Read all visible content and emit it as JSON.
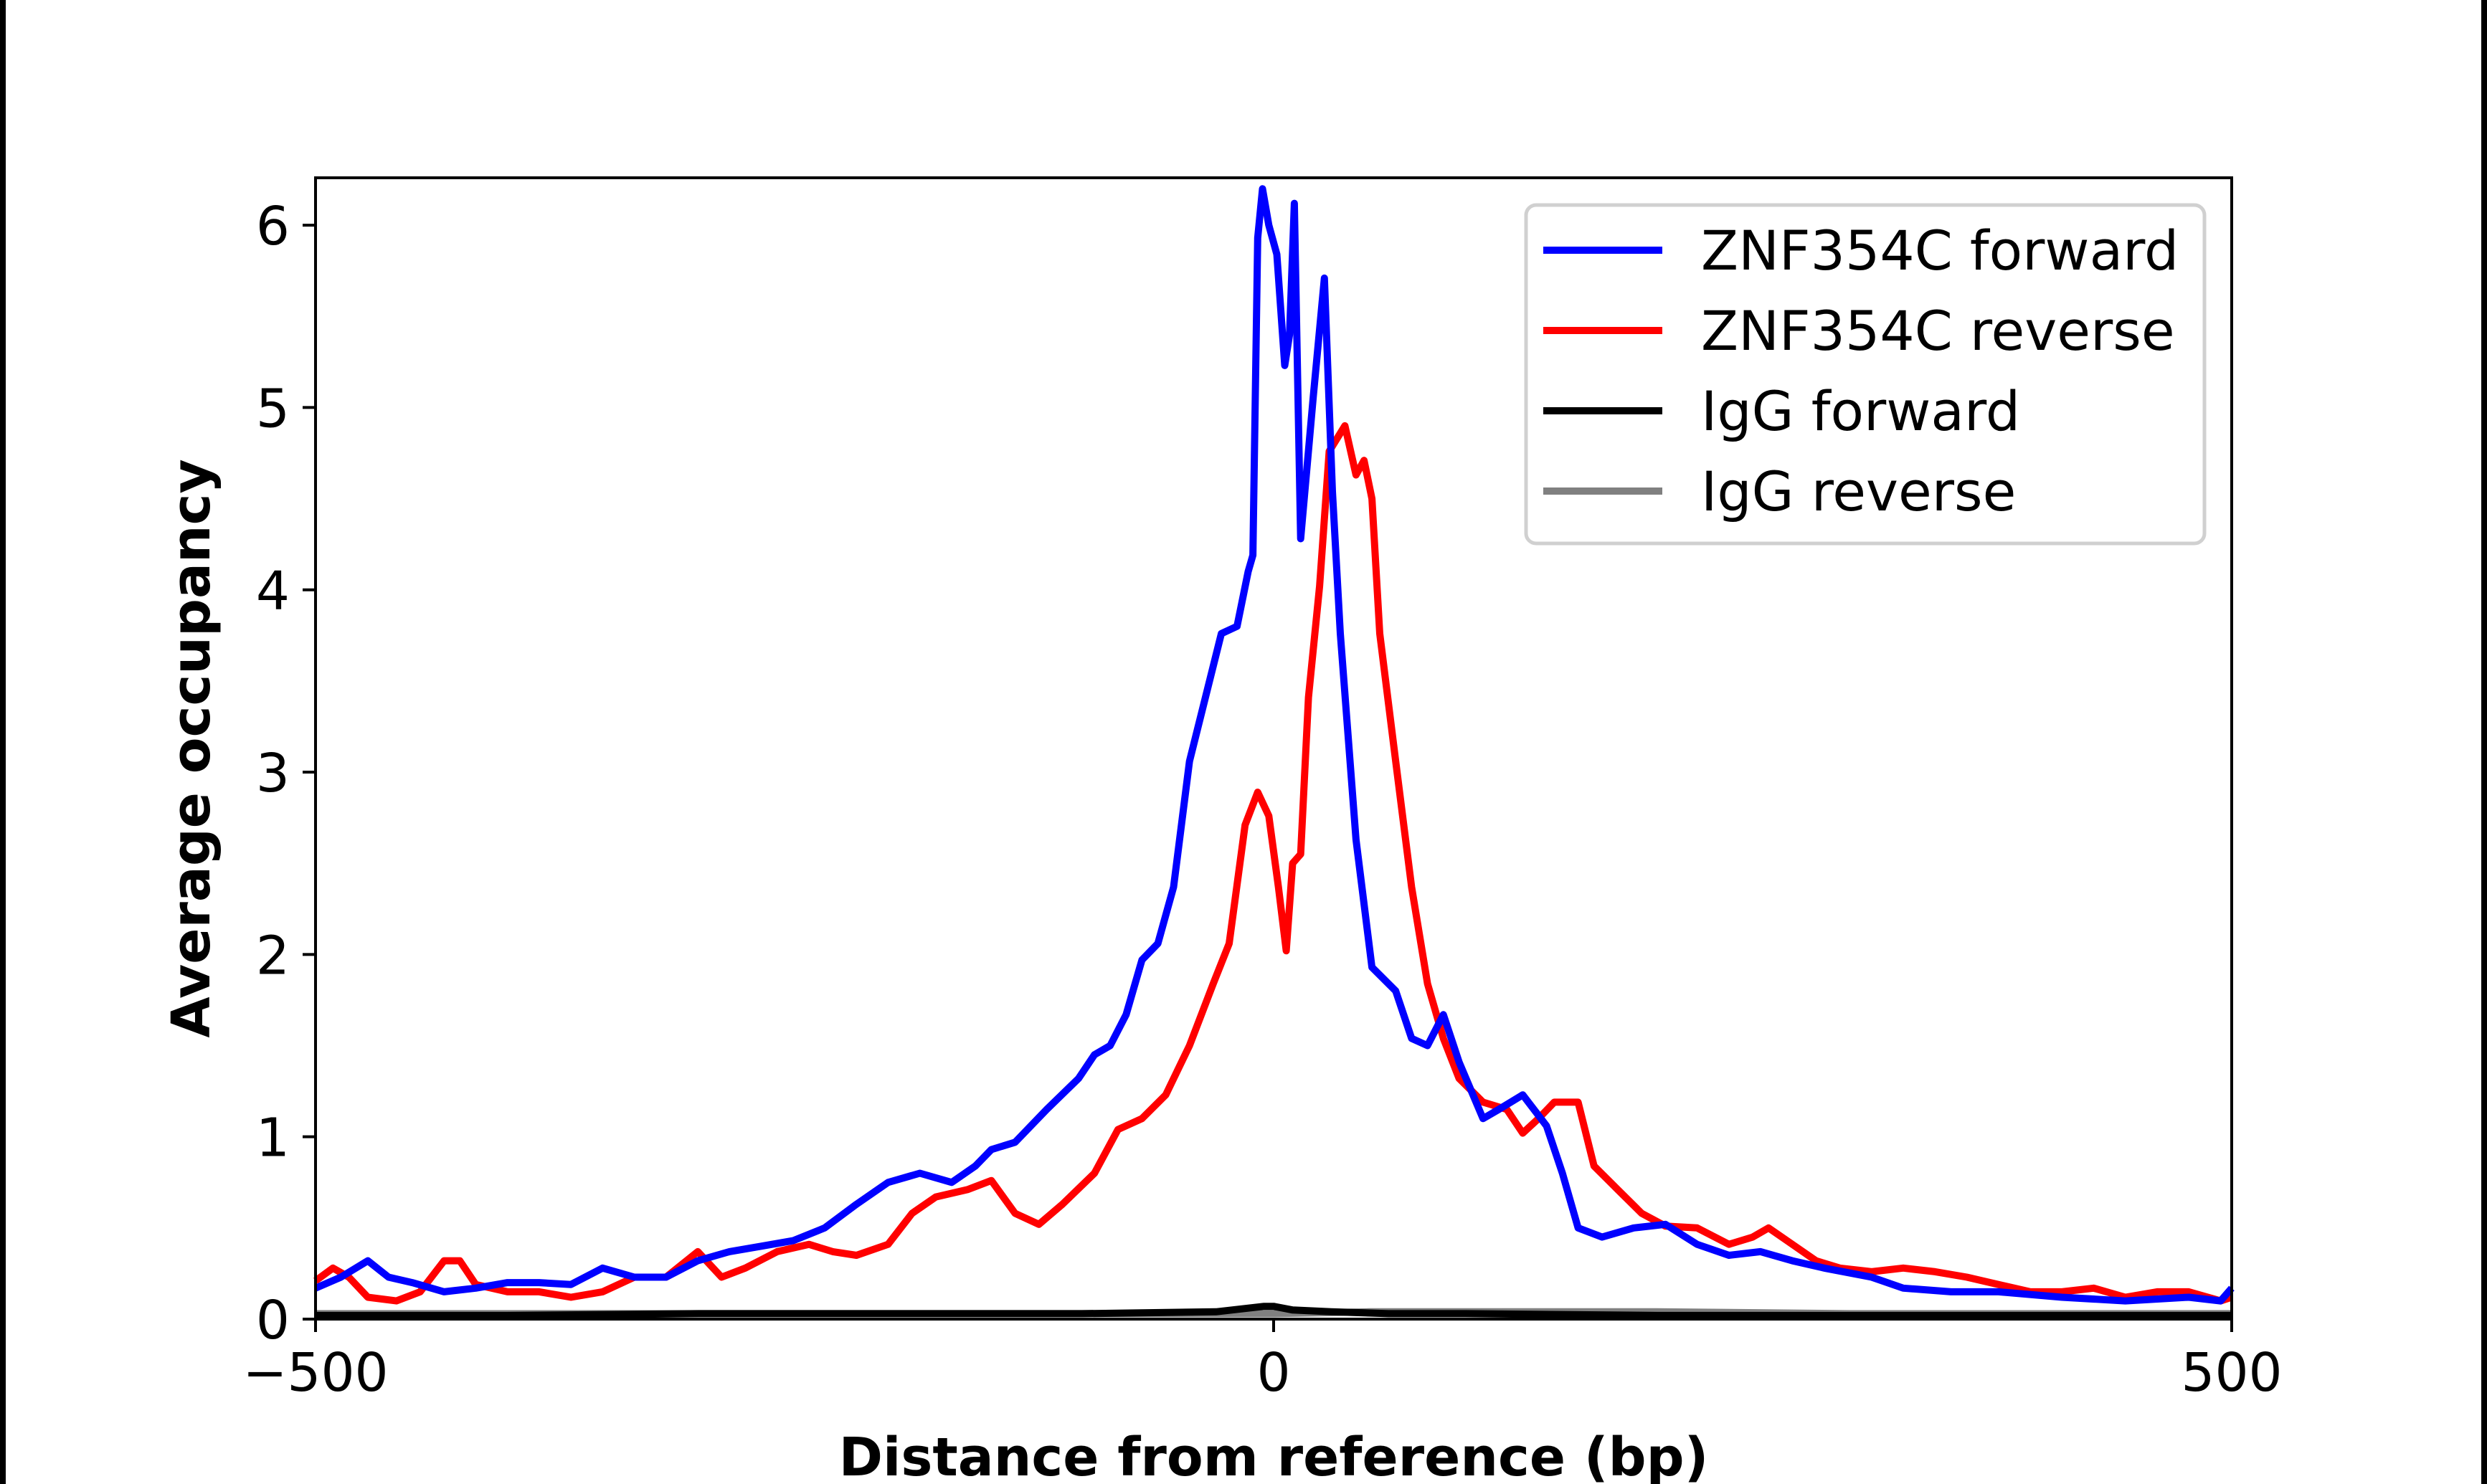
{
  "chart_data": {
    "type": "line",
    "xlabel": "Distance from reference (bp)",
    "ylabel": "Average occupancy",
    "xlim": [
      -500,
      500
    ],
    "ylim": [
      0,
      6.26
    ],
    "xticks": [
      -500,
      0,
      500
    ],
    "xtick_labels": [
      "−500",
      "0",
      "500"
    ],
    "yticks": [
      0,
      1,
      2,
      3,
      4,
      5,
      6
    ],
    "ytick_labels": [
      "0",
      "1",
      "2",
      "3",
      "4",
      "5",
      "6"
    ],
    "grid": false,
    "legend_position": "top-right",
    "series": [
      {
        "name": "ZNF354C forward",
        "color": "#0000ff",
        "x": [
          -500,
          -486.8,
          -472.7,
          -461.9,
          -449.5,
          -432.9,
          -416.4,
          -399.8,
          -383.3,
          -366.7,
          -350.2,
          -333.6,
          -317.1,
          -300.5,
          -284.0,
          -267.4,
          -250.8,
          -234.3,
          -217.7,
          -201.2,
          -184.6,
          -168.0,
          -155.6,
          -147.3,
          -134.9,
          -118.4,
          -101.8,
          -93.5,
          -85.3,
          -77.0,
          -68.7,
          -60.4,
          -52.2,
          -43.9,
          -35.6,
          -27.3,
          -19.1,
          -13.3,
          -10.8,
          -8.3,
          -5.8,
          -2.5,
          1.7,
          5.8,
          8.3,
          10.8,
          14.1,
          20.7,
          26.5,
          30.7,
          34.8,
          43.0,
          51.3,
          63.7,
          72.0,
          80.3,
          88.6,
          96.8,
          109.3,
          117.5,
          130.0,
          142.4,
          150.7,
          158.9,
          171.4,
          187.9,
          204.5,
          221.0,
          237.6,
          254.1,
          270.7,
          287.3,
          312.1,
          328.6,
          353.5,
          378.3,
          411.4,
          444.5,
          477.6,
          494.2,
          500
        ],
        "y": [
          0.17,
          0.23,
          0.32,
          0.23,
          0.2,
          0.15,
          0.17,
          0.2,
          0.2,
          0.19,
          0.28,
          0.23,
          0.23,
          0.32,
          0.37,
          0.4,
          0.43,
          0.5,
          0.63,
          0.75,
          0.8,
          0.75,
          0.84,
          0.93,
          0.97,
          1.15,
          1.32,
          1.45,
          1.5,
          1.67,
          1.97,
          2.06,
          2.37,
          3.06,
          3.41,
          3.76,
          3.8,
          4.1,
          4.19,
          5.93,
          6.2,
          6.0,
          5.84,
          5.23,
          5.4,
          6.12,
          4.28,
          5.06,
          5.71,
          4.54,
          3.76,
          2.63,
          1.93,
          1.8,
          1.54,
          1.5,
          1.67,
          1.41,
          1.1,
          1.15,
          1.23,
          1.06,
          0.8,
          0.5,
          0.45,
          0.5,
          0.52,
          0.41,
          0.35,
          0.37,
          0.32,
          0.28,
          0.23,
          0.17,
          0.15,
          0.15,
          0.12,
          0.1,
          0.12,
          0.1,
          0.17
        ]
      },
      {
        "name": "ZNF354C reverse",
        "color": "#ff0000",
        "x": [
          -500,
          -490.9,
          -482.6,
          -472.7,
          -457.8,
          -445.4,
          -432.9,
          -424.7,
          -416.4,
          -399.8,
          -383.3,
          -366.7,
          -350.2,
          -333.6,
          -317.1,
          -300.5,
          -288.1,
          -275.7,
          -259.1,
          -242.5,
          -230.1,
          -217.7,
          -201.2,
          -188.7,
          -176.3,
          -159.8,
          -147.3,
          -134.9,
          -122.5,
          -110.2,
          -93.5,
          -81.2,
          -68.7,
          -56.3,
          -43.9,
          -31.5,
          -23.2,
          -14.9,
          -8.3,
          -2.5,
          2.5,
          6.6,
          9.9,
          14.1,
          18.2,
          24.0,
          29.0,
          37.2,
          43.0,
          47.2,
          51.3,
          55.4,
          63.7,
          72.0,
          80.3,
          88.6,
          96.8,
          109.3,
          121.7,
          130.0,
          138.2,
          146.5,
          158.9,
          167.2,
          179.6,
          192.1,
          204.5,
          221.0,
          237.6,
          250.0,
          258.3,
          270.7,
          283.1,
          295.5,
          312.1,
          328.6,
          345.2,
          361.8,
          378.3,
          394.9,
          411.4,
          428.0,
          444.5,
          461.1,
          477.6,
          494.2,
          500
        ],
        "y": [
          0.21,
          0.28,
          0.23,
          0.12,
          0.1,
          0.15,
          0.32,
          0.32,
          0.19,
          0.15,
          0.15,
          0.12,
          0.15,
          0.23,
          0.23,
          0.37,
          0.23,
          0.28,
          0.37,
          0.41,
          0.37,
          0.35,
          0.41,
          0.58,
          0.67,
          0.71,
          0.76,
          0.58,
          0.52,
          0.63,
          0.8,
          1.04,
          1.1,
          1.23,
          1.5,
          1.84,
          2.06,
          2.71,
          2.89,
          2.76,
          2.37,
          2.02,
          2.5,
          2.55,
          3.41,
          4.02,
          4.76,
          4.9,
          4.63,
          4.71,
          4.5,
          3.76,
          3.06,
          2.37,
          1.84,
          1.54,
          1.32,
          1.19,
          1.15,
          1.02,
          1.1,
          1.19,
          1.19,
          0.84,
          0.71,
          0.58,
          0.51,
          0.5,
          0.41,
          0.45,
          0.5,
          0.41,
          0.32,
          0.28,
          0.26,
          0.28,
          0.26,
          0.23,
          0.19,
          0.15,
          0.15,
          0.17,
          0.12,
          0.15,
          0.15,
          0.1,
          0.12
        ]
      },
      {
        "name": "IgG forward",
        "color": "#000000",
        "x": [
          -500,
          -400,
          -300,
          -200,
          -100,
          -30,
          -5,
          0,
          10,
          30,
          60,
          100,
          200,
          300,
          400,
          500
        ],
        "y": [
          0.02,
          0.02,
          0.03,
          0.03,
          0.03,
          0.04,
          0.07,
          0.07,
          0.05,
          0.04,
          0.03,
          0.03,
          0.02,
          0.02,
          0.02,
          0.02
        ]
      },
      {
        "name": "IgG reverse",
        "color": "#808080",
        "x": [
          -500,
          -400,
          -300,
          -200,
          -100,
          0,
          50,
          100,
          200,
          300,
          400,
          500
        ],
        "y": [
          0.03,
          0.03,
          0.03,
          0.03,
          0.03,
          0.03,
          0.04,
          0.04,
          0.04,
          0.03,
          0.03,
          0.03
        ]
      }
    ]
  }
}
